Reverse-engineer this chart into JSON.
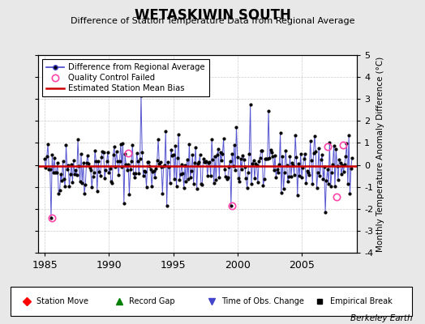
{
  "title": "WETASKIWIN SOUTH",
  "subtitle": "Difference of Station Temperature Data from Regional Average",
  "ylabel": "Monthly Temperature Anomaly Difference (°C)",
  "ylim": [
    -4,
    5
  ],
  "xlim": [
    1984.5,
    2009.3
  ],
  "bias_value": -0.05,
  "background_color": "#e8e8e8",
  "plot_bg_color": "#ffffff",
  "line_color": "#4444cc",
  "dot_color": "#000000",
  "bias_color": "#cc0000",
  "qc_color": "#ff44aa",
  "watermark": "Berkeley Earth",
  "seed": 42,
  "qc_times": [
    1985.58,
    1991.5,
    1999.6,
    2007.0,
    2007.7,
    2008.2
  ],
  "qc_vals": [
    -2.4,
    0.55,
    -1.85,
    0.82,
    -1.45,
    0.92
  ],
  "spike1_idx_year": 1992.5,
  "spike1_val": 3.15,
  "spike2_idx_year": 2001.0,
  "spike2_val": 2.75,
  "neg1_year": 1985.5,
  "neg1_val": -2.4,
  "neg2_year": 1999.5,
  "neg2_val": -1.85,
  "neg3_year": 1994.5,
  "neg3_val": -1.85
}
